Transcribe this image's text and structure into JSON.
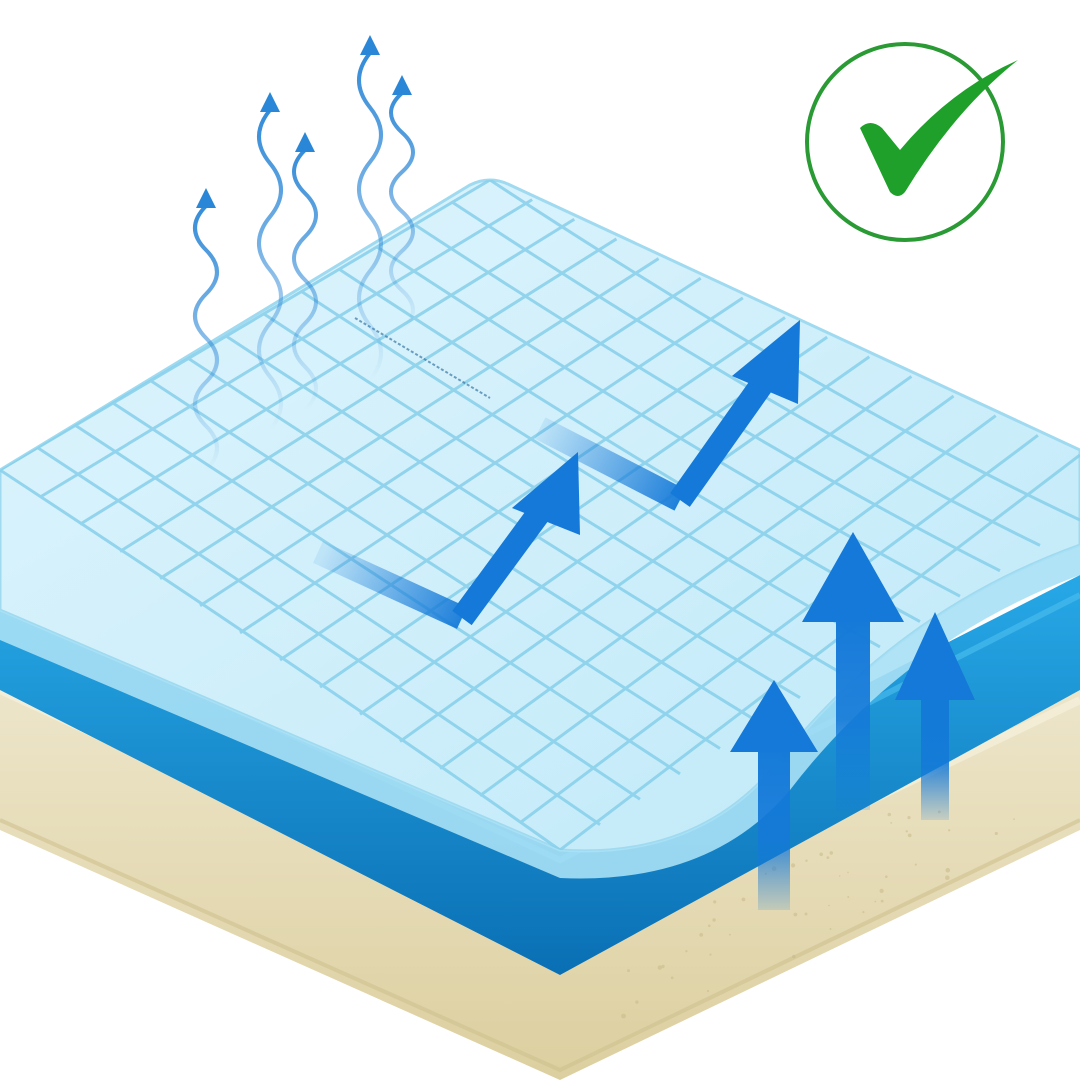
{
  "colors": {
    "background": "#ffffff",
    "foam_top": "#ebe4c9",
    "foam_side": "#ddd2ab",
    "foam_speckle": "#c9ba8a",
    "gel_layer": "#1a9ad9",
    "gel_layer_dark": "#0b74b8",
    "cover_fill": "#c9eefb",
    "cover_fill_light": "#e4f7fd",
    "cover_grid": "#86cfea",
    "arrow_blue": "#1479d8",
    "vapor_blue": "#2a86d6",
    "check_green": "#1fa02a",
    "check_ring": "#2a9a34"
  },
  "icons": {
    "approval": "check-circle-icon",
    "vapor": "wavy-up-arrow-icon",
    "airflow": "bent-up-arrow-icon",
    "rising": "up-arrow-icon"
  }
}
